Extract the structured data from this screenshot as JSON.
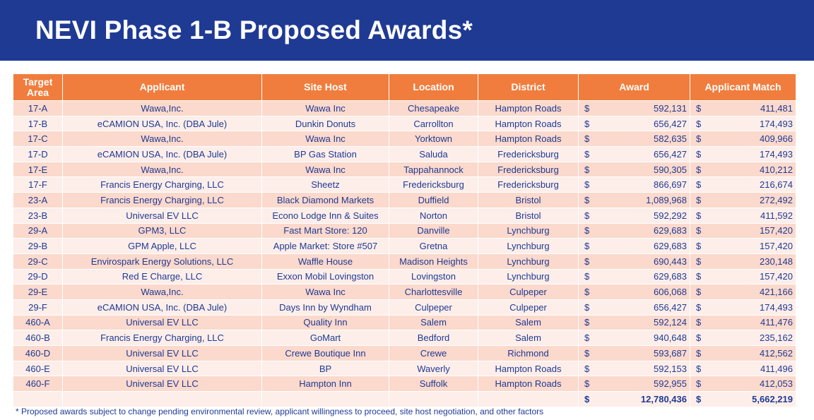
{
  "title": "NEVI Phase 1-B Proposed Awards*",
  "table": {
    "headers": [
      "Target Area",
      "Applicant",
      "Site Host",
      "Location",
      "District",
      "Award",
      "Applicant Match"
    ],
    "currency_symbol": "$",
    "rows": [
      {
        "area": "17-A",
        "applicant": "Wawa,Inc.",
        "host": "Wawa Inc",
        "location": "Chesapeake",
        "district": "Hampton Roads",
        "award": "592,131",
        "match": "411,481"
      },
      {
        "area": "17-B",
        "applicant": "eCAMION USA, Inc. (DBA Jule)",
        "host": "Dunkin Donuts",
        "location": "Carrollton",
        "district": "Hampton Roads",
        "award": "656,427",
        "match": "174,493"
      },
      {
        "area": "17-C",
        "applicant": "Wawa,Inc.",
        "host": "Wawa Inc",
        "location": "Yorktown",
        "district": "Hampton Roads",
        "award": "582,635",
        "match": "409,966"
      },
      {
        "area": "17-D",
        "applicant": "eCAMION USA, Inc. (DBA Jule)",
        "host": "BP Gas Station",
        "location": "Saluda",
        "district": "Fredericksburg",
        "award": "656,427",
        "match": "174,493"
      },
      {
        "area": "17-E",
        "applicant": "Wawa,Inc.",
        "host": "Wawa Inc",
        "location": "Tappahannock",
        "district": "Fredericksburg",
        "award": "590,305",
        "match": "410,212"
      },
      {
        "area": "17-F",
        "applicant": "Francis Energy Charging, LLC",
        "host": "Sheetz",
        "location": "Fredericksburg",
        "district": "Fredericksburg",
        "award": "866,697",
        "match": "216,674"
      },
      {
        "area": "23-A",
        "applicant": "Francis Energy Charging, LLC",
        "host": "Black Diamond Markets",
        "location": "Duffield",
        "district": "Bristol",
        "award": "1,089,968",
        "match": "272,492"
      },
      {
        "area": "23-B",
        "applicant": "Universal EV LLC",
        "host": "Econo Lodge Inn & Suites",
        "location": "Norton",
        "district": "Bristol",
        "award": "592,292",
        "match": "411,592"
      },
      {
        "area": "29-A",
        "applicant": "GPM3, LLC",
        "host": "Fast Mart Store: 120",
        "location": "Danville",
        "district": "Lynchburg",
        "award": "629,683",
        "match": "157,420"
      },
      {
        "area": "29-B",
        "applicant": "GPM Apple, LLC",
        "host": "Apple Market: Store #507",
        "location": "Gretna",
        "district": "Lynchburg",
        "award": "629,683",
        "match": "157,420"
      },
      {
        "area": "29-C",
        "applicant": "Envirospark Energy Solutions, LLC",
        "host": "Waffle House",
        "location": "Madison Heights",
        "district": "Lynchburg",
        "award": "690,443",
        "match": "230,148"
      },
      {
        "area": "29-D",
        "applicant": "Red E Charge, LLC",
        "host": "Exxon Mobil Lovingston",
        "location": "Lovingston",
        "district": "Lynchburg",
        "award": "629,683",
        "match": "157,420"
      },
      {
        "area": "29-E",
        "applicant": "Wawa,Inc.",
        "host": "Wawa Inc",
        "location": "Charlottesville",
        "district": "Culpeper",
        "award": "606,068",
        "match": "421,166"
      },
      {
        "area": "29-F",
        "applicant": "eCAMION USA, Inc. (DBA Jule)",
        "host": "Days Inn by Wyndham",
        "location": "Culpeper",
        "district": "Culpeper",
        "award": "656,427",
        "match": "174,493"
      },
      {
        "area": "460-A",
        "applicant": "Universal EV LLC",
        "host": "Quality Inn",
        "location": "Salem",
        "district": "Salem",
        "award": "592,124",
        "match": "411,476"
      },
      {
        "area": "460-B",
        "applicant": "Francis Energy Charging, LLC",
        "host": "GoMart",
        "location": "Bedford",
        "district": "Salem",
        "award": "940,648",
        "match": "235,162"
      },
      {
        "area": "460-D",
        "applicant": "Universal EV LLC",
        "host": "Crewe Boutique Inn",
        "location": "Crewe",
        "district": "Richmond",
        "award": "593,687",
        "match": "412,562"
      },
      {
        "area": "460-E",
        "applicant": "Universal EV LLC",
        "host": "BP",
        "location": "Waverly",
        "district": "Hampton Roads",
        "award": "592,153",
        "match": "411,496"
      },
      {
        "area": "460-F",
        "applicant": "Universal EV LLC",
        "host": "Hampton Inn",
        "location": "Suffolk",
        "district": "Hampton Roads",
        "award": "592,955",
        "match": "412,053"
      }
    ],
    "totals": {
      "award": "12,780,436",
      "match": "5,662,219"
    }
  },
  "footnote": "* Proposed awards subject to change pending environmental review, applicant willingness to proceed, site host negotiation, and other factors",
  "colors": {
    "banner": "#1f3a93",
    "header": "#f07d3d",
    "row_odd": "#fbd9cc",
    "row_even": "#fdeeea",
    "text": "#1f3a93"
  }
}
